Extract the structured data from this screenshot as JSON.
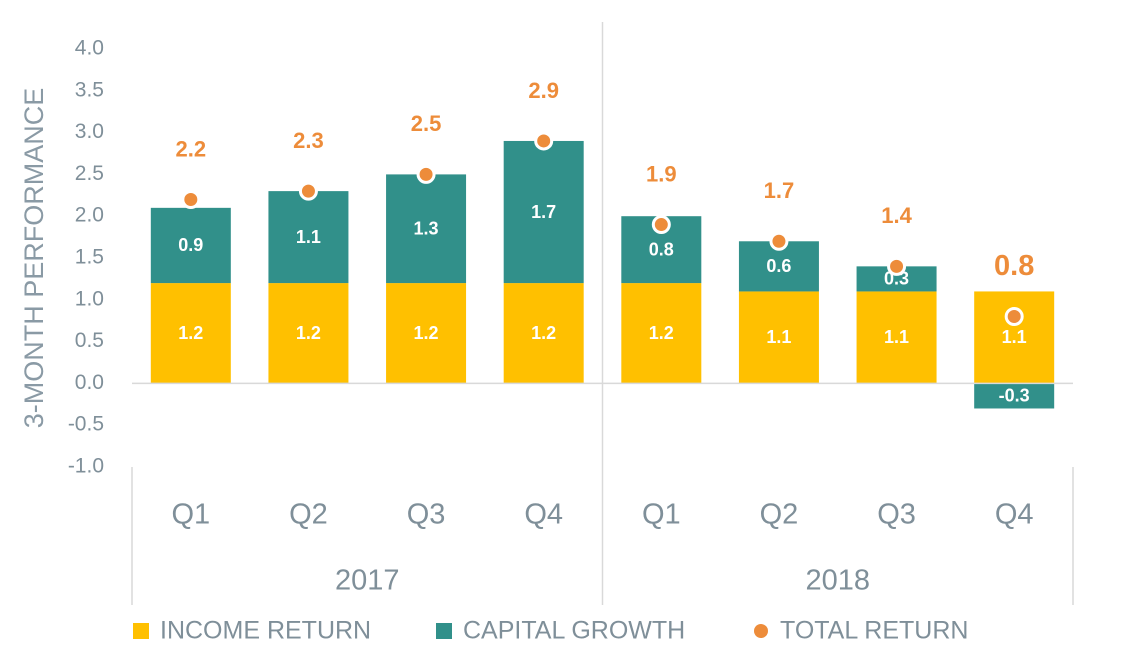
{
  "chart_data": {
    "type": "stacked-bar-with-points",
    "y_axis_label": "3-MONTH PERFORMANCE",
    "groups": [
      {
        "name": "2017",
        "categories": [
          "Q1",
          "Q2",
          "Q3",
          "Q4"
        ]
      },
      {
        "name": "2018",
        "categories": [
          "Q1",
          "Q2",
          "Q3",
          "Q4"
        ]
      }
    ],
    "series": [
      {
        "name": "INCOME RETURN",
        "color": "#ffc000",
        "kind": "bar",
        "values": [
          1.2,
          1.2,
          1.2,
          1.2,
          1.2,
          1.1,
          1.1,
          1.1
        ]
      },
      {
        "name": "CAPITAL GROWTH",
        "color": "#31908a",
        "kind": "bar",
        "values": [
          0.9,
          1.1,
          1.3,
          1.7,
          0.8,
          0.6,
          0.3,
          -0.3
        ]
      },
      {
        "name": "TOTAL RETURN",
        "color": "#ed8c3a",
        "kind": "point",
        "values": [
          2.2,
          2.3,
          2.5,
          2.9,
          1.9,
          1.7,
          1.4,
          0.8
        ]
      }
    ],
    "ylim": [
      -1,
      4
    ],
    "yticks": [
      {
        "value": -1,
        "label": "-1.0"
      },
      -0.5,
      {
        "value": 0,
        "label": "0.0"
      },
      0.5,
      {
        "value": 1,
        "label": "1.0"
      },
      1.5,
      {
        "value": 2,
        "label": "2.0"
      },
      2.5,
      {
        "value": 3,
        "label": "3.0"
      },
      3.5,
      {
        "value": 4,
        "label": "4.0"
      }
    ],
    "grid": false,
    "legend": "bottom"
  }
}
